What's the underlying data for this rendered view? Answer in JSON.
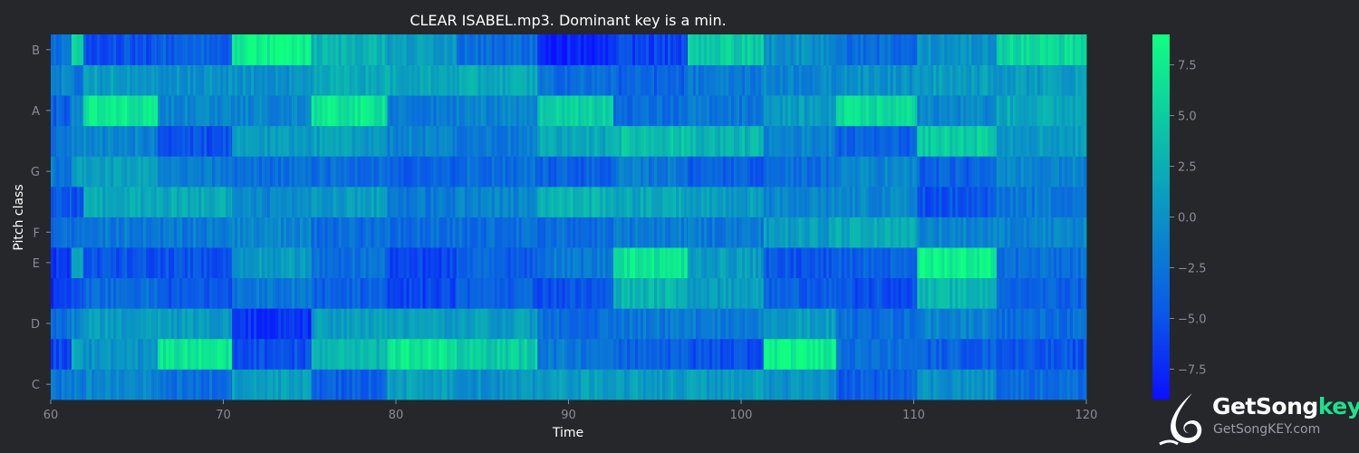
{
  "chart_data": {
    "type": "heatmap",
    "title": "CLEAR ISABEL.mp3. Dominant key is a min.",
    "xlabel": "Time",
    "ylabel": "Pitch class",
    "xlim": [
      60,
      120
    ],
    "x_ticks": [
      "60",
      "70",
      "80",
      "90",
      "100",
      "110",
      "120"
    ],
    "y_rows": [
      "C",
      "C#",
      "D",
      "D#",
      "E",
      "F",
      "F#",
      "G",
      "G#",
      "A",
      "A#",
      "B"
    ],
    "y_ticks": [
      "C",
      "D",
      "E",
      "F",
      "G",
      "A",
      "B"
    ],
    "colorbar": {
      "range": [
        -9,
        9
      ],
      "ticks": [
        "7.5",
        "5.0",
        "2.5",
        "0.0",
        "−2.5",
        "−5.0",
        "−7.5"
      ],
      "colormap": [
        "#0a10ff",
        "#0a5ce6",
        "#0a91c6",
        "#0cc6a6",
        "#10ff80"
      ]
    },
    "segments": [
      {
        "start": 60,
        "end": 61.2,
        "values": [
          -2,
          -6,
          -3,
          -7,
          -7,
          -3,
          -4,
          -2,
          -3,
          -4,
          -1,
          -3
        ]
      },
      {
        "start": 61.2,
        "end": 61.9,
        "values": [
          -2,
          2,
          -1,
          -6,
          2,
          -3,
          -5,
          1,
          -2,
          0,
          -2,
          6
        ]
      },
      {
        "start": 61.9,
        "end": 66.2,
        "values": [
          -1,
          0,
          1,
          -3,
          -5,
          -2,
          2,
          1,
          -1,
          7,
          1,
          -5
        ]
      },
      {
        "start": 66.2,
        "end": 70.5,
        "values": [
          -3,
          7,
          1,
          -5,
          -5,
          -2,
          2,
          -2,
          -5,
          -1,
          0,
          -4
        ]
      },
      {
        "start": 70.5,
        "end": 75.1,
        "values": [
          1,
          -5,
          -7,
          -2,
          1,
          -1,
          -1,
          -3,
          1,
          -1,
          0,
          8
        ]
      },
      {
        "start": 75.1,
        "end": 79.5,
        "values": [
          -4,
          3,
          1,
          -4,
          -3,
          -3,
          1,
          -3,
          1,
          7,
          2,
          3
        ]
      },
      {
        "start": 79.5,
        "end": 83.5,
        "values": [
          1,
          7,
          1,
          -6,
          -6,
          -3,
          -2,
          -4,
          -1,
          -2,
          2,
          1
        ]
      },
      {
        "start": 83.5,
        "end": 88.2,
        "values": [
          0,
          5,
          1,
          -4,
          -4,
          -3,
          -1,
          -3,
          -2,
          -1,
          2,
          -3
        ]
      },
      {
        "start": 88.2,
        "end": 92.6,
        "values": [
          1,
          -2,
          -3,
          -5,
          -2,
          -3,
          3,
          -4,
          2,
          5,
          -3,
          -8
        ]
      },
      {
        "start": 92.6,
        "end": 96.9,
        "values": [
          1,
          -4,
          -2,
          3,
          7,
          -2,
          2,
          -2,
          4,
          -3,
          -4,
          -6
        ]
      },
      {
        "start": 96.9,
        "end": 101.3,
        "values": [
          1,
          -5,
          -2,
          1,
          1,
          -2,
          1,
          -4,
          3,
          -2,
          -2,
          5
        ]
      },
      {
        "start": 101.3,
        "end": 105.5,
        "values": [
          0,
          8,
          1,
          -4,
          -5,
          1,
          -1,
          -3,
          -1,
          1,
          -1,
          0
        ]
      },
      {
        "start": 105.5,
        "end": 110.2,
        "values": [
          -4,
          -3,
          -3,
          -5,
          -4,
          2,
          -1,
          -1,
          -4,
          6,
          0,
          -3
        ]
      },
      {
        "start": 110.2,
        "end": 114.8,
        "values": [
          0,
          -4,
          -1,
          3,
          8,
          -1,
          -5,
          -4,
          5,
          -1,
          1,
          0
        ]
      },
      {
        "start": 114.8,
        "end": 120,
        "values": [
          -3,
          -5,
          -3,
          -4,
          -3,
          -1,
          -2,
          -1,
          1,
          2,
          1,
          6
        ]
      }
    ]
  },
  "watermark": {
    "brand_main": "GetSong",
    "brand_accent": "key",
    "brand_url": "GetSongKEY.com",
    "logo_icon": "note-bird-icon"
  }
}
